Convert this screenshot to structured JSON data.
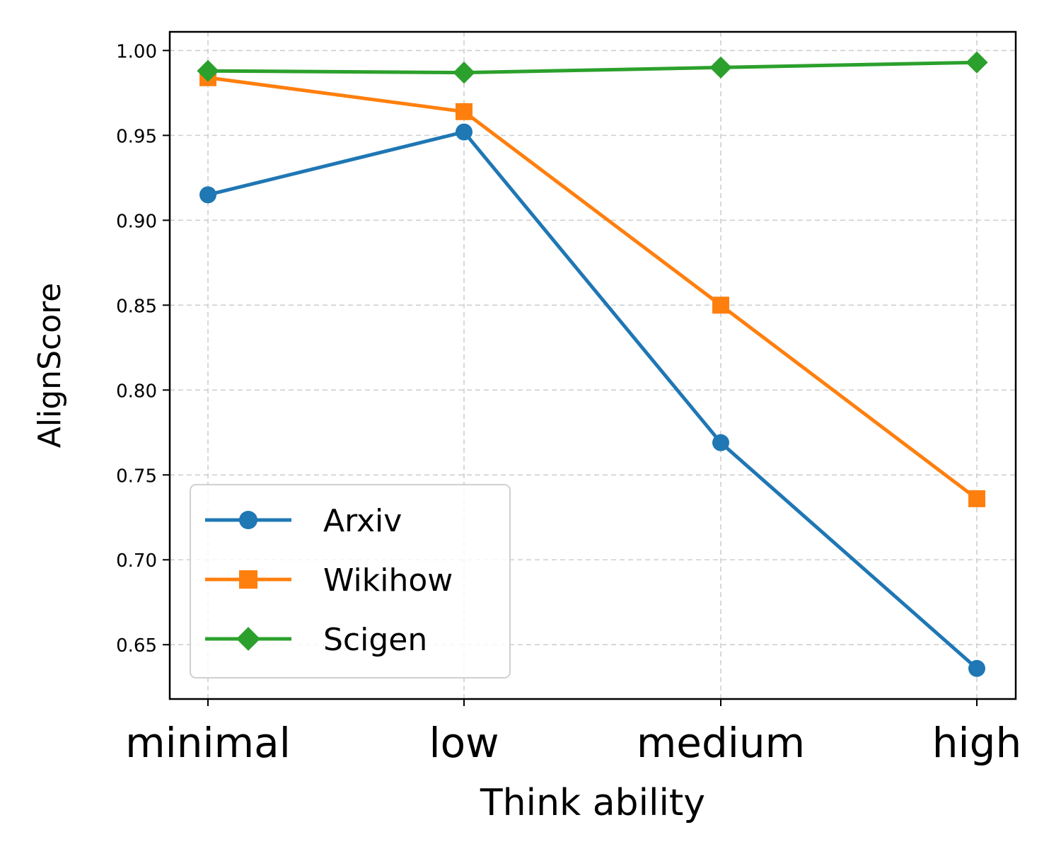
{
  "chart_data": {
    "type": "line",
    "title": "",
    "xlabel": "Think ability",
    "ylabel": "AlignScore",
    "categories": [
      "minimal",
      "low",
      "medium",
      "high"
    ],
    "ylim": [
      0.618,
      1.011
    ],
    "yticks": [
      0.65,
      0.7,
      0.75,
      0.8,
      0.85,
      0.9,
      0.95,
      1.0
    ],
    "ytick_labels": [
      "0.65",
      "0.70",
      "0.75",
      "0.80",
      "0.85",
      "0.90",
      "0.95",
      "1.00"
    ],
    "grid": true,
    "legend_position": "lower-left",
    "series": [
      {
        "name": "Arxiv",
        "color": "#1f77b4",
        "marker": "circle",
        "values": [
          0.915,
          0.952,
          0.769,
          0.636
        ]
      },
      {
        "name": "Wikihow",
        "color": "#ff7f0e",
        "marker": "square",
        "values": [
          0.984,
          0.964,
          0.85,
          0.736
        ]
      },
      {
        "name": "Scigen",
        "color": "#2ca02c",
        "marker": "diamond",
        "values": [
          0.988,
          0.987,
          0.99,
          0.993
        ]
      }
    ]
  }
}
